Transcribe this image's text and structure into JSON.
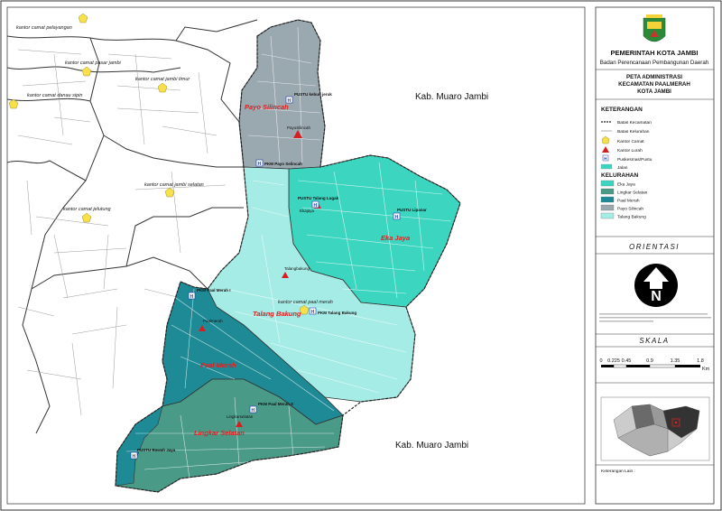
{
  "header": {
    "org": "PEMERINTAH KOTA JAMBI",
    "dept": "Badan Perencanaan Pembangunan Daerah"
  },
  "map_title": {
    "line1": "PETA ADMINISTRASI",
    "line2": "KECAMATAN PAALMERAH",
    "line3": "KOTA JAMBI"
  },
  "legend": {
    "heading": "KETERANGAN",
    "items": [
      {
        "label": "Batas Kecamatan",
        "symbol": "dashed-line"
      },
      {
        "label": "Batas Kelurahan",
        "symbol": "thin-line"
      },
      {
        "label": "Kantor Camat",
        "symbol": "pentagon-yellow"
      },
      {
        "label": "Kantor Lurah",
        "symbol": "triangle-red"
      },
      {
        "label": "Puskesmas/Pustu",
        "symbol": "h-box"
      },
      {
        "label": "Jalan",
        "symbol": "teal-fill"
      }
    ],
    "kelurahan_heading": "KELURAHAN",
    "kelurahan": [
      {
        "label": "Eka Jaya",
        "color": "#3cd6c0"
      },
      {
        "label": "Lingkar Selatan",
        "color": "#4a9a88"
      },
      {
        "label": "Paal Merah",
        "color": "#1e8a96"
      },
      {
        "label": "Payo Silincah",
        "color": "#9aa8b0"
      },
      {
        "label": "Talang Bakung",
        "color": "#a6ece6"
      }
    ]
  },
  "orientasi": {
    "heading": "ORIENTASI",
    "north": "N"
  },
  "skala": {
    "heading": "SKALA",
    "ticks": [
      "0",
      "0.225",
      "0.45",
      "0.9",
      "1.35",
      "1.8"
    ],
    "unit": "Km"
  },
  "keterangan_lain": "Keterangan Lain :",
  "regions": {
    "muaro_jambi_top": "Kab. Muaro Jambi",
    "muaro_jambi_bottom": "Kab. Muaro Jambi"
  },
  "kelurahan_labels": {
    "payo_silincah": "Payo Silincah",
    "eka_jaya": "Eka Jaya",
    "talang_bakung": "Talang Bakung",
    "paal_merah": "Paal Merah",
    "lingkar_selatan": "Lingkar Selatan"
  },
  "camat_labels": {
    "pelayangan": "kantor camat pelayangan",
    "pasar_jambi": "kantor camat pasar jambi",
    "jambi_timur": "kantor camat jambi timur",
    "danau_sipin": "kantor camat danau sipin",
    "jambi_selatan": "kantor camat jambi selatan",
    "jelutung": "kantor camat jelutung",
    "paal_merah": "kantor camat paal merah"
  },
  "facility_labels": {
    "pustu_payo": "PUSTU kebun jeruk",
    "payo_lurah": "PayoSilincah",
    "pkm_payo": "PKM Payo Selincah",
    "pustu_talang": "PUSTU Talang Lugak",
    "ekajaya_lurah": "Ekajaya",
    "pustu_lipanar": "PUSTU Lipanar",
    "talang_lurah": "Talangbakung",
    "pkm_talang": "PKM Talang Bakung",
    "pkm_paal": "PKM Paal Merah I",
    "paal_lurah": "Paalmerah",
    "pkm_paal2": "PKM Paal Merah II",
    "lingkar_lurah": "Lingkarselatan",
    "pustu_bawah": "PUSTU Bawah Jaya"
  },
  "colors": {
    "eka_jaya": "#3cd6c0",
    "lingkar_selatan": "#4a9a88",
    "paal_merah": "#1e8a96",
    "payo_silincah": "#9aa8b0",
    "talang_bakung": "#a6ece6",
    "kantor_camat": "#f7e04a",
    "kantor_lurah": "#d42020",
    "label_red": "#e02020"
  }
}
